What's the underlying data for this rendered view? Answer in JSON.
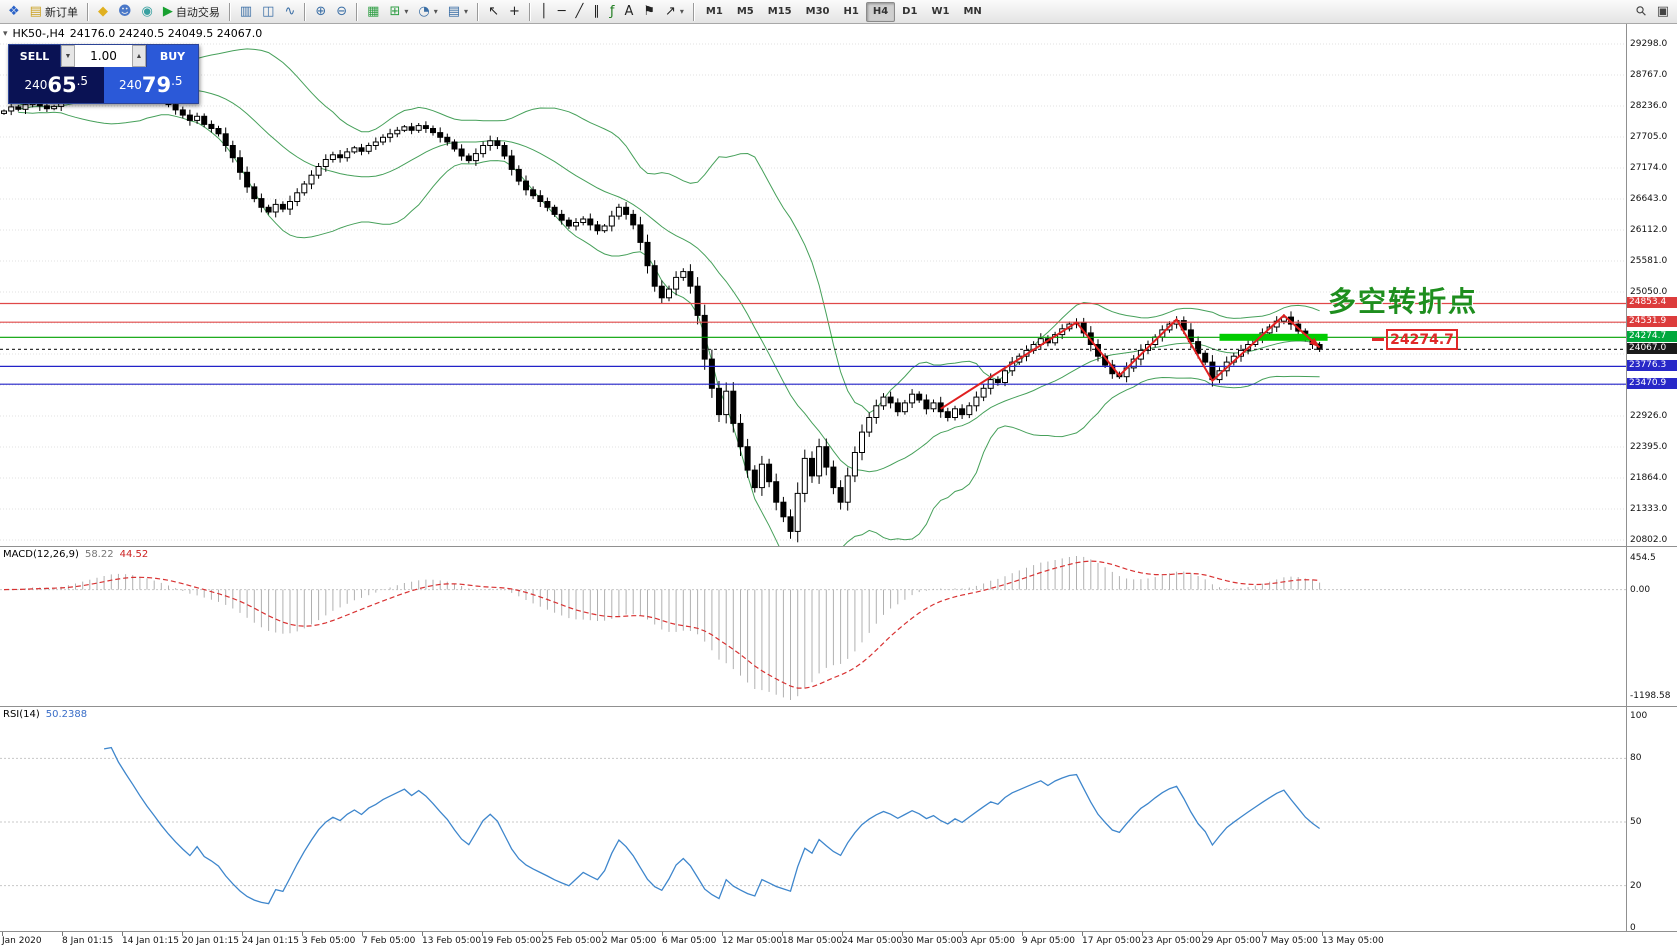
{
  "colors": {
    "bollinger": "#46a05a",
    "trend": "#e02020",
    "zone": "#00cc00",
    "grid": "#e2e2e2",
    "macd_signal": "#d83232",
    "macd_hist": "#b0b0b0",
    "rsi_line": "#3e86cc",
    "candle_up": "#ffffff",
    "candle_down": "#000000"
  },
  "toolbar": {
    "items": [
      {
        "type": "btn",
        "name": "new-chart-button",
        "glyph": "❖",
        "color": "#2a62c8"
      },
      {
        "type": "btn",
        "name": "new-order-button",
        "glyph": "▤",
        "color": "#caa020",
        "label": "新订单"
      },
      {
        "type": "sep"
      },
      {
        "type": "btn",
        "name": "favorites-icon",
        "glyph": "◆",
        "color": "#e0b020"
      },
      {
        "type": "btn",
        "name": "profile-icon",
        "glyph": "☻",
        "color": "#4a78c8"
      },
      {
        "type": "btn",
        "name": "market-icon",
        "glyph": "◉",
        "color": "#38a0a0"
      },
      {
        "type": "btn",
        "name": "autotrade-button",
        "glyph": "▶",
        "color": "#18a030",
        "label": "自动交易"
      },
      {
        "type": "sep"
      },
      {
        "type": "btn",
        "name": "chart-bars-icon",
        "glyph": "▥",
        "color": "#3a6ea5"
      },
      {
        "type": "btn",
        "name": "chart-candles-icon",
        "glyph": "◫",
        "color": "#3a6ea5"
      },
      {
        "type": "btn",
        "name": "chart-line-icon",
        "glyph": "∿",
        "color": "#3a6ea5"
      },
      {
        "type": "sep"
      },
      {
        "type": "btn",
        "name": "zoom-in-button",
        "glyph": "⊕",
        "color": "#3a6ea5"
      },
      {
        "type": "btn",
        "name": "zoom-out-button",
        "glyph": "⊖",
        "color": "#3a6ea5"
      },
      {
        "type": "sep"
      },
      {
        "type": "btn",
        "name": "grid-button",
        "glyph": "▦",
        "color": "#2f9e44"
      },
      {
        "type": "btn",
        "name": "indicators-button",
        "glyph": "⊞",
        "color": "#2f9e44",
        "arrow": true
      },
      {
        "type": "btn",
        "name": "periods-button",
        "glyph": "◔",
        "color": "#3a6ea5",
        "arrow": true
      },
      {
        "type": "btn",
        "name": "templates-button",
        "glyph": "▤",
        "color": "#3a6ea5",
        "arrow": true
      },
      {
        "type": "sep"
      },
      {
        "type": "btn",
        "name": "cursor-button",
        "glyph": "↖",
        "color": "#222"
      },
      {
        "type": "btn",
        "name": "crosshair-button",
        "glyph": "+",
        "color": "#222"
      },
      {
        "type": "sep"
      },
      {
        "type": "btn",
        "name": "vertical-line-button",
        "glyph": "│",
        "color": "#222"
      },
      {
        "type": "btn",
        "name": "horizontal-line-button",
        "glyph": "─",
        "color": "#222"
      },
      {
        "type": "btn",
        "name": "trendline-button",
        "glyph": "╱",
        "color": "#222"
      },
      {
        "type": "btn",
        "name": "channel-button",
        "glyph": "∥",
        "color": "#222"
      },
      {
        "type": "btn",
        "name": "fibonacci-button",
        "glyph": "ƒ",
        "color": "#1a7a1a"
      },
      {
        "type": "btn",
        "name": "text-button",
        "glyph": "A",
        "color": "#222"
      },
      {
        "type": "btn",
        "name": "label-button",
        "glyph": "⚑",
        "color": "#222"
      },
      {
        "type": "btn",
        "name": "shapes-button",
        "glyph": "↗",
        "color": "#222",
        "arrow": true
      },
      {
        "type": "sep"
      },
      {
        "type": "tf",
        "name": "tf-m1-button",
        "text": "M1"
      },
      {
        "type": "tf",
        "name": "tf-m5-button",
        "text": "M5"
      },
      {
        "type": "tf",
        "name": "tf-m15-button",
        "text": "M15"
      },
      {
        "type": "tf",
        "name": "tf-m30-button",
        "text": "M30"
      },
      {
        "type": "tf",
        "name": "tf-h1-button",
        "text": "H1"
      },
      {
        "type": "tf",
        "name": "tf-h4-button",
        "text": "H4",
        "active": true
      },
      {
        "type": "tf",
        "name": "tf-d1-button",
        "text": "D1"
      },
      {
        "type": "tf",
        "name": "tf-w1-button",
        "text": "W1"
      },
      {
        "type": "tf",
        "name": "tf-mn-button",
        "text": "MN"
      },
      {
        "type": "spacer"
      },
      {
        "type": "btn",
        "name": "search-icon",
        "glyph": "⚲",
        "color": "#444",
        "cls": "rot-45"
      },
      {
        "type": "btn",
        "name": "new-window-icon",
        "glyph": "▣",
        "color": "#444"
      }
    ]
  },
  "symbol_info": {
    "collapse_glyph": "▾",
    "symbol": "HK50-,H4",
    "ohlc": "24176.0 24240.5 24049.5 24067.0"
  },
  "trade_panel": {
    "sell_label": "SELL",
    "buy_label": "BUY",
    "volume": "1.00",
    "spin_down_glyph": "▼",
    "spin_up_glyph": "▲",
    "sell_price": {
      "p1": "240",
      "p2": "65",
      "p3": ".5"
    },
    "buy_price": {
      "p1": "240",
      "p2": "79",
      "p3": ".5"
    }
  },
  "annotations": {
    "turning_point_text": "多空转折点",
    "price_box_value": "24274.7"
  },
  "macd": {
    "label": "MACD(12,26,9)",
    "value_main": "58.22",
    "value_signal": "44.52",
    "axis": [
      "454.5",
      "0.00",
      "-1198.58"
    ],
    "params": [
      12,
      26,
      9
    ]
  },
  "rsi": {
    "label": "RSI(14)",
    "value": "50.2388",
    "axis": [
      100,
      80,
      50,
      20,
      0
    ],
    "period": 14,
    "levels": [
      80,
      50,
      20
    ]
  },
  "price_axis": {
    "labels": [
      29298.0,
      28767.0,
      28236.0,
      27705.0,
      27174.0,
      26643.0,
      26112.0,
      25581.0,
      25050.0,
      22926.0,
      22395.0,
      21864.0,
      21333.0,
      20802.0
    ],
    "tags": [
      {
        "value": 24853.4,
        "bg": "#dc3c3c"
      },
      {
        "value": 24531.9,
        "bg": "#dc3c3c"
      },
      {
        "value": 24274.7,
        "bg": "#00a83c"
      },
      {
        "value": 24067.0,
        "bg": "#1a1a1a"
      },
      {
        "value": 23776.3,
        "bg": "#2828c8"
      },
      {
        "value": 23470.9,
        "bg": "#2828c8"
      }
    ]
  },
  "time_axis": {
    "labels": [
      "Jan 2020",
      "8 Jan 01:15",
      "14 Jan 01:15",
      "20 Jan 01:15",
      "24 Jan 01:15",
      "3 Feb 05:00",
      "7 Feb 05:00",
      "13 Feb 05:00",
      "19 Feb 05:00",
      "25 Feb 05:00",
      "2 Mar 05:00",
      "6 Mar 05:00",
      "12 Mar 05:00",
      "18 Mar 05:00",
      "24 Mar 05:00",
      "30 Mar 05:00",
      "3 Apr 05:00",
      "9 Apr 05:00",
      "17 Apr 05:00",
      "23 Apr 05:00",
      "29 Apr 05:00",
      "7 May 05:00",
      "13 May 05:00"
    ]
  },
  "chart_data": {
    "type": "candlestick",
    "symbol": "HK50",
    "timeframe": "H4",
    "ohlc_current": {
      "open": 24176.0,
      "high": 24240.5,
      "low": 24049.5,
      "close": 24067.0
    },
    "bid": 24065.5,
    "ask": 24079.5,
    "price_axis_range": [
      20802.0,
      29298.0
    ],
    "grid_step": 531.0,
    "closes": [
      28150,
      28220,
      28180,
      28260,
      28310,
      28240,
      28190,
      28230,
      28350,
      28480,
      28560,
      28640,
      28720,
      28800,
      28860,
      28900,
      28820,
      28750,
      28680,
      28600,
      28520,
      28440,
      28350,
      28260,
      28170,
      28080,
      27990,
      28060,
      27920,
      27850,
      27760,
      27560,
      27350,
      27100,
      26850,
      26650,
      26500,
      26420,
      26550,
      26470,
      26600,
      26750,
      26900,
      27050,
      27200,
      27320,
      27400,
      27350,
      27450,
      27520,
      27460,
      27560,
      27620,
      27700,
      27760,
      27820,
      27880,
      27820,
      27900,
      27850,
      27780,
      27700,
      27620,
      27500,
      27380,
      27300,
      27420,
      27560,
      27640,
      27560,
      27380,
      27150,
      26950,
      26800,
      26700,
      26600,
      26500,
      26380,
      26280,
      26180,
      26240,
      26300,
      26200,
      26100,
      26180,
      26350,
      26500,
      26380,
      26200,
      25900,
      25500,
      25150,
      24950,
      25100,
      25300,
      25400,
      25150,
      24650,
      23900,
      23400,
      22950,
      23350,
      22800,
      22400,
      22000,
      21700,
      22100,
      21800,
      21450,
      21200,
      20950,
      21600,
      22200,
      21900,
      22400,
      22050,
      21700,
      21450,
      21900,
      22300,
      22650,
      22900,
      23100,
      23250,
      23150,
      23000,
      23150,
      23300,
      23200,
      23050,
      23150,
      23000,
      22900,
      23050,
      22950,
      23100,
      23250,
      23400,
      23550,
      23500,
      23700,
      23850,
      23950,
      24050,
      24150,
      24250,
      24180,
      24320,
      24420,
      24500,
      24530,
      24350,
      24150,
      23950,
      23800,
      23650,
      23600,
      23750,
      23900,
      24050,
      24150,
      24280,
      24400,
      24500,
      24560,
      24400,
      24200,
      24000,
      23850,
      23550,
      23700,
      23850,
      23950,
      24050,
      24150,
      24250,
      24350,
      24450,
      24550,
      24620,
      24500,
      24380,
      24250,
      24150,
      24067
    ],
    "hlines": [
      {
        "price": 24853.4,
        "color": "#e04848",
        "style": "solid"
      },
      {
        "price": 24531.9,
        "color": "#e04848",
        "style": "solid"
      },
      {
        "price": 24274.7,
        "color": "#00a000",
        "style": "solid"
      },
      {
        "price": 24067.0,
        "color": "#333333",
        "style": "dotted"
      },
      {
        "price": 23776.3,
        "color": "#2222c8",
        "style": "solid"
      },
      {
        "price": 23470.9,
        "color": "#2222c8",
        "style": "solid"
      }
    ],
    "zone_bar": {
      "price": 24274.7,
      "from_index": 170,
      "to_index": 184
    },
    "trend_path": [
      [
        131,
        23050
      ],
      [
        150,
        24530
      ],
      [
        156,
        23620
      ],
      [
        164,
        24580
      ],
      [
        169,
        23530
      ],
      [
        179,
        24650
      ],
      [
        184,
        24100
      ]
    ],
    "indicators": {
      "bollinger": {
        "period": 20,
        "deviation": 2
      },
      "macd": [
        12,
        26,
        9
      ],
      "rsi": 14
    }
  }
}
